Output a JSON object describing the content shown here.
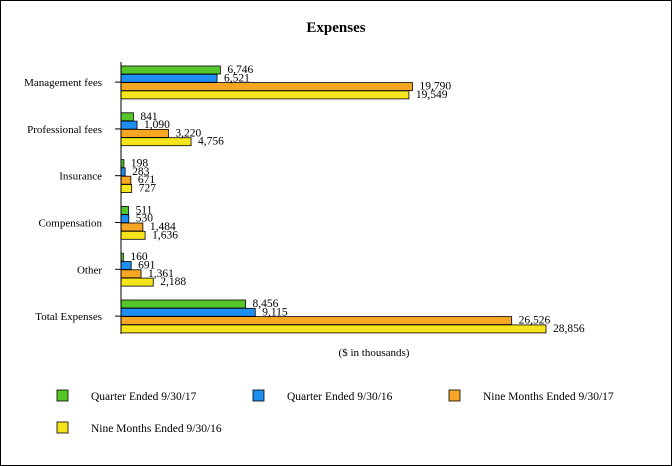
{
  "chart_data": {
    "type": "bar",
    "orientation": "horizontal",
    "title": "Expenses",
    "xlabel": "($ in thousands)",
    "ylabel": "",
    "xlim": [
      0,
      30000
    ],
    "grid": false,
    "legend_position": "bottom",
    "categories": [
      "Management fees",
      "Professional fees",
      "Insurance",
      "Compensation",
      "Other",
      "Total Expenses"
    ],
    "series": [
      {
        "name": "Quarter Ended 9/30/17",
        "color": "#55c72b",
        "values": [
          6746,
          841,
          198,
          511,
          160,
          8456
        ],
        "labels": [
          "6,746",
          "841",
          "198",
          "511",
          "160",
          "8,456"
        ]
      },
      {
        "name": "Quarter Ended 9/30/16",
        "color": "#1e8ff0",
        "values": [
          6521,
          1090,
          283,
          530,
          691,
          9115
        ],
        "labels": [
          "6,521",
          "1,090",
          "283",
          "530",
          "691",
          "9,115"
        ]
      },
      {
        "name": "Nine Months Ended 9/30/17",
        "color": "#f5a623",
        "values": [
          19790,
          3220,
          671,
          1484,
          1361,
          26526
        ],
        "labels": [
          "19,790",
          "3,220",
          "671",
          "1,484",
          "1,361",
          "26,526"
        ]
      },
      {
        "name": "Nine Months Ended 9/30/16",
        "color": "#f7e51c",
        "values": [
          19549,
          4756,
          727,
          1636,
          2188,
          28856
        ],
        "labels": [
          "19,549",
          "4,756",
          "727",
          "1,636",
          "2,188",
          "28,856"
        ]
      }
    ]
  }
}
